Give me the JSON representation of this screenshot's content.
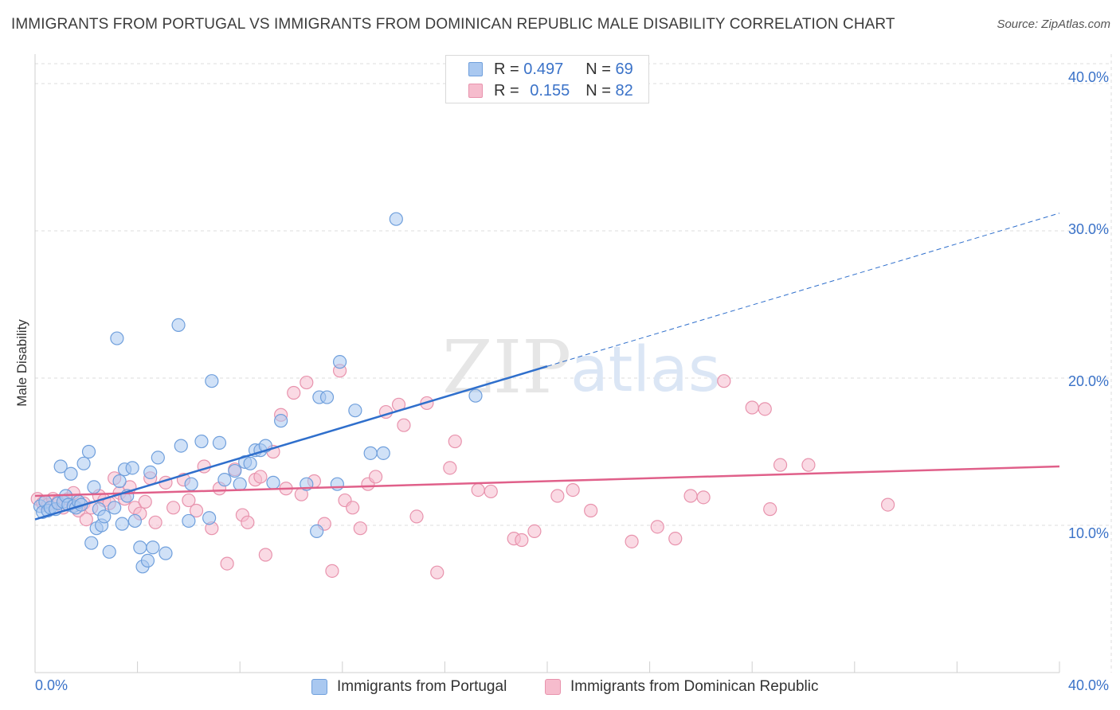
{
  "header": {
    "title": "IMMIGRANTS FROM PORTUGAL VS IMMIGRANTS FROM DOMINICAN REPUBLIC MALE DISABILITY CORRELATION CHART",
    "source": "Source: ZipAtlas.com"
  },
  "watermark": {
    "zip": "ZIP",
    "atlas": "atlas"
  },
  "legend_top": {
    "rows": [
      {
        "r_label": "R =",
        "r_value": "0.497",
        "n_label": "N =",
        "n_value": "69"
      },
      {
        "r_label": "R =",
        "r_value": "0.155",
        "n_label": "N =",
        "n_value": "82"
      }
    ]
  },
  "legend_bottom": {
    "items": [
      {
        "label": "Immigrants from Portugal"
      },
      {
        "label": "Immigrants from Dominican Republic"
      }
    ]
  },
  "colors": {
    "portugal_fill": "#a9c8f0",
    "portugal_stroke": "#6f9fdc",
    "portugal_line": "#2f6fcc",
    "dominican_fill": "#f6bccd",
    "dominican_stroke": "#e893ad",
    "dominican_line": "#e0608a",
    "tick_label": "#3a72c8",
    "grid": "#dcdcdc"
  },
  "chart_data": {
    "type": "scatter",
    "title": "IMMIGRANTS FROM PORTUGAL VS IMMIGRANTS FROM DOMINICAN REPUBLIC MALE DISABILITY CORRELATION CHART",
    "xlabel": "",
    "ylabel": "Male Disability",
    "xlim": [
      0,
      40
    ],
    "ylim": [
      0,
      42
    ],
    "x_tick_labels": [
      "0.0%",
      "40.0%"
    ],
    "y_ticks": [
      10,
      20,
      30,
      40
    ],
    "y_tick_labels": [
      "10.0%",
      "20.0%",
      "30.0%",
      "40.0%"
    ],
    "grid": true,
    "legend_position": "top-center",
    "series": [
      {
        "name": "Immigrants from Portugal",
        "r": 0.497,
        "n": 69,
        "trend": {
          "x0": 0,
          "y0": 10.4,
          "x1": 20,
          "y1": 20.8,
          "extend_to_x": 40,
          "extend_to_y": 31.2
        },
        "points": [
          [
            0.2,
            11.3
          ],
          [
            0.3,
            10.9
          ],
          [
            0.4,
            11.6
          ],
          [
            0.5,
            11.0
          ],
          [
            0.6,
            11.2
          ],
          [
            0.8,
            11.1
          ],
          [
            0.9,
            11.5
          ],
          [
            1.0,
            14.0
          ],
          [
            1.1,
            11.6
          ],
          [
            1.2,
            12.0
          ],
          [
            1.3,
            11.4
          ],
          [
            1.4,
            13.5
          ],
          [
            1.5,
            11.3
          ],
          [
            1.6,
            11.2
          ],
          [
            1.7,
            11.6
          ],
          [
            1.8,
            11.4
          ],
          [
            1.9,
            14.2
          ],
          [
            2.1,
            15.0
          ],
          [
            2.2,
            8.8
          ],
          [
            2.3,
            12.6
          ],
          [
            2.4,
            9.8
          ],
          [
            2.5,
            11.1
          ],
          [
            2.6,
            10.0
          ],
          [
            2.7,
            10.6
          ],
          [
            2.9,
            8.2
          ],
          [
            3.1,
            11.2
          ],
          [
            3.2,
            22.7
          ],
          [
            3.3,
            13.0
          ],
          [
            3.4,
            10.1
          ],
          [
            3.5,
            13.8
          ],
          [
            3.6,
            12.0
          ],
          [
            3.8,
            13.9
          ],
          [
            3.9,
            10.3
          ],
          [
            4.1,
            8.5
          ],
          [
            4.2,
            7.2
          ],
          [
            4.4,
            7.6
          ],
          [
            4.5,
            13.6
          ],
          [
            4.6,
            8.5
          ],
          [
            4.8,
            14.6
          ],
          [
            5.1,
            8.1
          ],
          [
            5.6,
            23.6
          ],
          [
            5.7,
            15.4
          ],
          [
            6.0,
            10.3
          ],
          [
            6.1,
            12.8
          ],
          [
            6.5,
            15.7
          ],
          [
            6.8,
            10.5
          ],
          [
            6.9,
            19.8
          ],
          [
            7.2,
            15.6
          ],
          [
            7.4,
            13.1
          ],
          [
            7.8,
            13.7
          ],
          [
            8.0,
            12.8
          ],
          [
            8.2,
            14.3
          ],
          [
            8.4,
            14.2
          ],
          [
            8.6,
            15.1
          ],
          [
            8.8,
            15.1
          ],
          [
            9.0,
            15.4
          ],
          [
            9.3,
            12.9
          ],
          [
            9.6,
            17.1
          ],
          [
            10.6,
            12.8
          ],
          [
            11.0,
            9.6
          ],
          [
            11.1,
            18.7
          ],
          [
            11.4,
            18.7
          ],
          [
            11.8,
            12.8
          ],
          [
            11.9,
            21.1
          ],
          [
            12.5,
            17.8
          ],
          [
            13.1,
            14.9
          ],
          [
            13.6,
            14.9
          ],
          [
            14.1,
            30.8
          ],
          [
            17.2,
            18.8
          ]
        ]
      },
      {
        "name": "Immigrants from Dominican Republic",
        "r": 0.155,
        "n": 82,
        "trend": {
          "x0": 0,
          "y0": 12.0,
          "x1": 40,
          "y1": 14.0
        },
        "points": [
          [
            0.1,
            11.8
          ],
          [
            0.3,
            11.5
          ],
          [
            0.5,
            11.4
          ],
          [
            0.7,
            11.8
          ],
          [
            0.9,
            11.6
          ],
          [
            1.1,
            11.2
          ],
          [
            1.3,
            11.8
          ],
          [
            1.5,
            12.2
          ],
          [
            1.7,
            11.0
          ],
          [
            1.9,
            11.5
          ],
          [
            2.0,
            10.4
          ],
          [
            2.2,
            11.2
          ],
          [
            2.5,
            12.0
          ],
          [
            2.7,
            11.7
          ],
          [
            2.9,
            11.5
          ],
          [
            3.1,
            13.2
          ],
          [
            3.3,
            12.2
          ],
          [
            3.5,
            11.8
          ],
          [
            3.7,
            12.6
          ],
          [
            3.9,
            11.2
          ],
          [
            4.1,
            10.8
          ],
          [
            4.3,
            11.6
          ],
          [
            4.5,
            13.2
          ],
          [
            4.7,
            10.2
          ],
          [
            5.1,
            12.9
          ],
          [
            5.4,
            11.2
          ],
          [
            5.8,
            13.1
          ],
          [
            6.0,
            11.7
          ],
          [
            6.3,
            11.0
          ],
          [
            6.6,
            14.0
          ],
          [
            6.9,
            9.8
          ],
          [
            7.2,
            12.5
          ],
          [
            7.5,
            7.4
          ],
          [
            7.8,
            13.8
          ],
          [
            8.1,
            10.7
          ],
          [
            8.3,
            10.2
          ],
          [
            8.6,
            13.1
          ],
          [
            8.8,
            13.3
          ],
          [
            9.0,
            8.0
          ],
          [
            9.3,
            15.0
          ],
          [
            9.6,
            17.5
          ],
          [
            9.8,
            12.5
          ],
          [
            10.1,
            19.0
          ],
          [
            10.4,
            12.1
          ],
          [
            10.6,
            19.7
          ],
          [
            10.9,
            13.0
          ],
          [
            11.3,
            10.1
          ],
          [
            11.6,
            6.9
          ],
          [
            11.9,
            20.5
          ],
          [
            12.1,
            11.7
          ],
          [
            12.4,
            11.2
          ],
          [
            12.7,
            9.8
          ],
          [
            13.0,
            12.8
          ],
          [
            13.3,
            13.3
          ],
          [
            13.7,
            17.7
          ],
          [
            14.2,
            18.2
          ],
          [
            14.4,
            16.8
          ],
          [
            14.9,
            10.6
          ],
          [
            15.3,
            18.3
          ],
          [
            15.7,
            6.8
          ],
          [
            16.2,
            13.9
          ],
          [
            16.4,
            15.7
          ],
          [
            17.3,
            12.4
          ],
          [
            17.8,
            12.3
          ],
          [
            18.7,
            9.1
          ],
          [
            19.0,
            9.0
          ],
          [
            19.5,
            9.6
          ],
          [
            20.4,
            12.0
          ],
          [
            21.0,
            12.4
          ],
          [
            21.7,
            11.0
          ],
          [
            23.3,
            8.9
          ],
          [
            24.3,
            9.9
          ],
          [
            25.0,
            9.1
          ],
          [
            25.6,
            12.0
          ],
          [
            26.1,
            11.9
          ],
          [
            26.9,
            19.8
          ],
          [
            28.0,
            18.0
          ],
          [
            28.5,
            17.9
          ],
          [
            28.7,
            11.1
          ],
          [
            29.1,
            14.1
          ],
          [
            30.2,
            14.1
          ],
          [
            33.3,
            11.4
          ]
        ]
      }
    ]
  }
}
